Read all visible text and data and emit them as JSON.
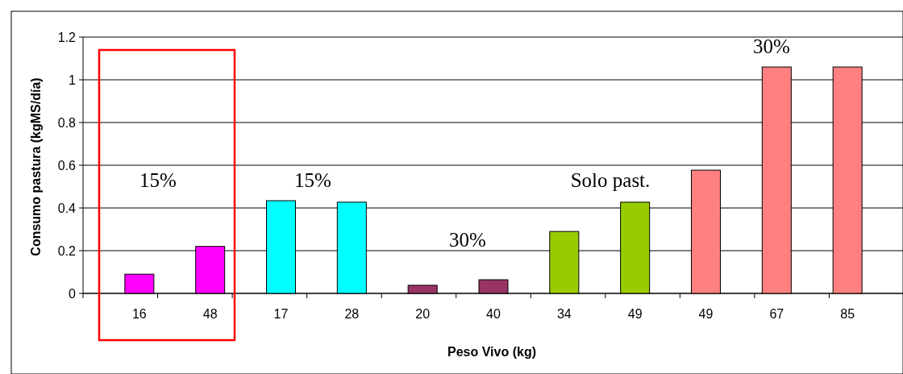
{
  "chart_data": {
    "type": "bar",
    "xlabel": "Peso Vivo (kg)",
    "ylabel": "Consumo pastura (kgMS/día)",
    "categories": [
      "16",
      "48",
      "17",
      "28",
      "20",
      "40",
      "34",
      "49",
      "49",
      "67",
      "85"
    ],
    "values": [
      0.09,
      0.22,
      0.434,
      0.427,
      0.038,
      0.064,
      0.29,
      0.427,
      0.577,
      1.06,
      1.06
    ],
    "colors": [
      "#ff00ff",
      "#ff00ff",
      "#00ffff",
      "#00ffff",
      "#993366",
      "#993366",
      "#99cc00",
      "#99cc00",
      "#ff8080",
      "#ff8080",
      "#ff8080"
    ],
    "ylim": [
      0,
      1.2
    ],
    "yticks": [
      0,
      0.2,
      0.4,
      0.6,
      0.8,
      1,
      1.2
    ],
    "grid": "y",
    "annotations": [
      "15%",
      "15%",
      "30%",
      "Solo past.",
      "30%"
    ]
  }
}
